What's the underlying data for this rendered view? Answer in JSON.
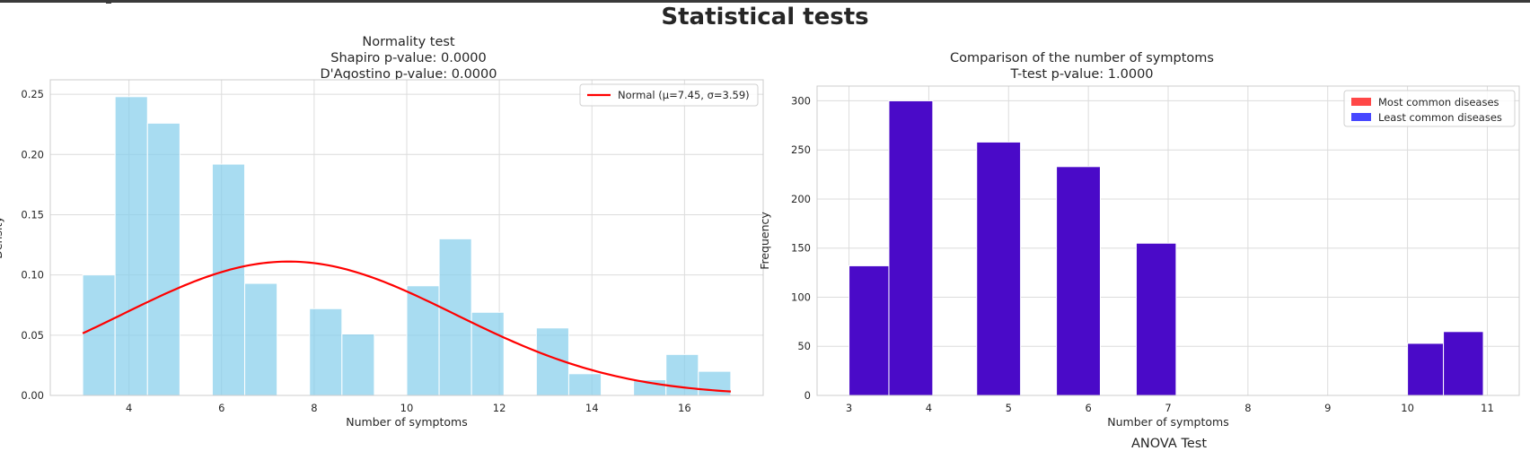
{
  "figure": {
    "title": "Statistical tests",
    "bottom_title": "ANOVA Test"
  },
  "chart_data": [
    {
      "type": "bar",
      "title_lines": [
        "Normality test",
        "Shapiro p-value: 0.0000",
        "D'Agostino p-value: 0.0000"
      ],
      "xlabel": "Number of symptoms",
      "ylabel": "Density",
      "xlim": [
        2.3,
        17.7
      ],
      "ylim": [
        0,
        0.262
      ],
      "xticks": [
        4,
        6,
        8,
        10,
        12,
        14,
        16
      ],
      "yticks": [
        0.0,
        0.05,
        0.1,
        0.15,
        0.2,
        0.25
      ],
      "bin_edges": [
        3.0,
        3.7,
        4.4,
        5.1,
        5.8,
        6.5,
        7.2,
        7.9,
        8.6,
        9.3,
        10.0,
        10.7,
        11.4,
        12.1,
        12.8,
        13.5,
        14.2,
        14.9,
        15.6,
        16.3,
        17.0
      ],
      "values": [
        0.1,
        0.248,
        0.226,
        0,
        0.192,
        0.093,
        0,
        0.072,
        0.051,
        0,
        0.091,
        0.13,
        0.069,
        0,
        0.056,
        0.018,
        0,
        0.013,
        0.034,
        0.02
      ],
      "bar_color": "#87ceeb",
      "grid": true,
      "normal_fit": {
        "mu": 7.45,
        "sigma": 3.59,
        "color": "#ff0000",
        "label": "Normal (μ=7.45, σ=3.59)"
      },
      "legend_position": "upper right"
    },
    {
      "type": "bar",
      "title_lines": [
        "Comparison of the number of symptoms",
        "T-test p-value: 1.0000"
      ],
      "xlabel": "Number of symptoms",
      "ylabel": "Frequency",
      "xlim": [
        2.6,
        11.4
      ],
      "ylim": [
        0,
        315
      ],
      "xticks": [
        3,
        4,
        5,
        6,
        7,
        8,
        9,
        10,
        11
      ],
      "yticks": [
        0,
        50,
        100,
        150,
        200,
        250,
        300
      ],
      "bars": [
        {
          "x0": 3.0,
          "x1": 3.5,
          "value": 132
        },
        {
          "x0": 3.5,
          "x1": 4.05,
          "value": 300
        },
        {
          "x0": 4.6,
          "x1": 5.15,
          "value": 258
        },
        {
          "x0": 5.6,
          "x1": 6.15,
          "value": 233
        },
        {
          "x0": 6.6,
          "x1": 7.1,
          "value": 155
        },
        {
          "x0": 10.0,
          "x1": 10.45,
          "value": 53
        },
        {
          "x0": 10.45,
          "x1": 10.95,
          "value": 65
        }
      ],
      "series": [
        {
          "name": "Most common diseases",
          "color": "#ff0000"
        },
        {
          "name": "Least common diseases",
          "color": "#0000ff"
        }
      ],
      "overlap_color": "#4a0ac8",
      "grid": true,
      "legend_position": "upper right"
    }
  ]
}
